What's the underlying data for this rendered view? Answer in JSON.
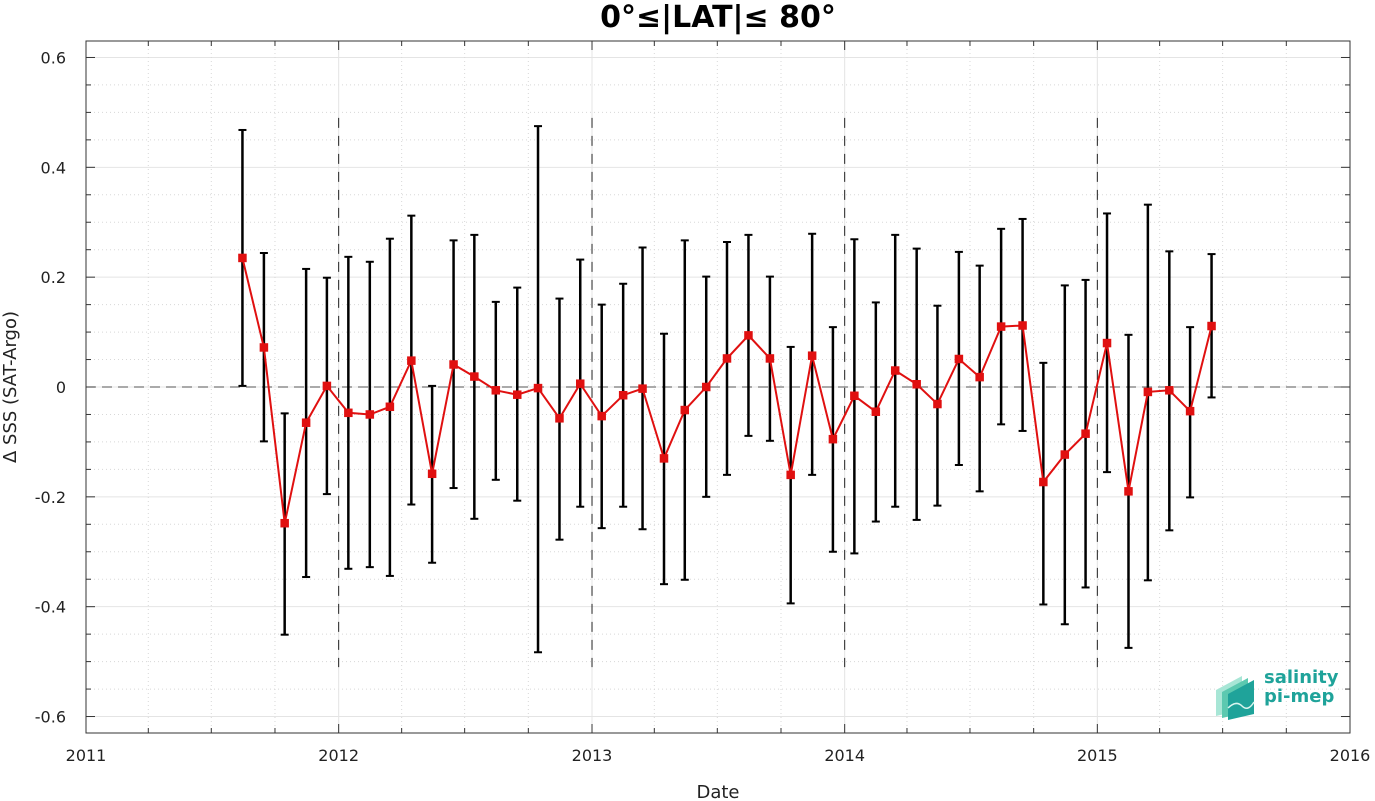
{
  "chart_data": {
    "type": "line",
    "title": "0°≤|LAT|≤ 80°",
    "xlabel": "Date",
    "ylabel": "Δ SSS (SAT-Argo)",
    "xlim": [
      "2011-01-01",
      "2016-01-01"
    ],
    "ylim": [
      -0.63,
      0.63
    ],
    "x_ticks": [
      "2011",
      "2012",
      "2013",
      "2014",
      "2015",
      "2016"
    ],
    "y_ticks": [
      "-0.6",
      "-0.4",
      "-0.2",
      "0",
      "0.2",
      "0.4",
      "0.6"
    ],
    "grid": true,
    "zero_reference_line": true,
    "year_divider_lines": [
      "2012-01-01",
      "2013-01-01",
      "2014-01-01",
      "2015-01-01"
    ],
    "series": [
      {
        "style": "line-with-square-markers",
        "color": "#e01010",
        "errorbar_color": "#000000",
        "x": [
          "2011-08-15",
          "2011-09-15",
          "2011-10-15",
          "2011-11-15",
          "2011-12-15",
          "2012-01-15",
          "2012-02-15",
          "2012-03-15",
          "2012-04-15",
          "2012-05-15",
          "2012-06-15",
          "2012-07-15",
          "2012-08-15",
          "2012-09-15",
          "2012-10-15",
          "2012-11-15",
          "2012-12-15",
          "2013-01-15",
          "2013-02-15",
          "2013-03-15",
          "2013-04-15",
          "2013-05-15",
          "2013-06-15",
          "2013-07-15",
          "2013-08-15",
          "2013-09-15",
          "2013-10-15",
          "2013-11-15",
          "2013-12-15",
          "2014-01-15",
          "2014-02-15",
          "2014-03-15",
          "2014-04-15",
          "2014-05-15",
          "2014-06-15",
          "2014-07-15",
          "2014-08-15",
          "2014-09-15",
          "2014-10-15",
          "2014-11-15",
          "2014-12-15",
          "2015-01-15",
          "2015-02-15",
          "2015-03-15",
          "2015-04-15",
          "2015-05-15",
          "2015-06-15"
        ],
        "y": [
          0.235,
          0.072,
          -0.248,
          -0.065,
          0.002,
          -0.047,
          -0.05,
          -0.036,
          0.048,
          -0.158,
          0.041,
          0.019,
          -0.006,
          -0.014,
          -0.002,
          -0.057,
          0.006,
          -0.053,
          -0.015,
          -0.003,
          -0.13,
          -0.042,
          0.0,
          0.052,
          0.094,
          0.052,
          -0.16,
          0.057,
          -0.095,
          -0.016,
          -0.045,
          0.03,
          0.005,
          -0.031,
          0.051,
          0.018,
          0.11,
          0.112,
          -0.173,
          -0.123,
          -0.085,
          0.08,
          -0.19,
          -0.009,
          -0.006,
          -0.044,
          0.111
        ],
        "y_upper": [
          0.468,
          0.244,
          -0.048,
          0.215,
          0.199,
          0.237,
          0.228,
          0.27,
          0.312,
          0.002,
          0.267,
          0.277,
          0.155,
          0.181,
          0.475,
          0.161,
          0.232,
          0.15,
          0.188,
          0.254,
          0.097,
          0.267,
          0.201,
          0.264,
          0.277,
          0.201,
          0.073,
          0.279,
          0.109,
          0.269,
          0.154,
          0.277,
          0.252,
          0.148,
          0.246,
          0.221,
          0.288,
          0.306,
          0.044,
          0.185,
          0.195,
          0.316,
          0.095,
          0.332,
          0.247,
          0.109,
          0.242
        ],
        "y_lower": [
          0.002,
          -0.099,
          -0.451,
          -0.346,
          -0.195,
          -0.331,
          -0.328,
          -0.344,
          -0.214,
          -0.32,
          -0.184,
          -0.24,
          -0.169,
          -0.207,
          -0.483,
          -0.278,
          -0.218,
          -0.257,
          -0.218,
          -0.259,
          -0.359,
          -0.351,
          -0.2,
          -0.16,
          -0.089,
          -0.098,
          -0.394,
          -0.16,
          -0.3,
          -0.303,
          -0.245,
          -0.218,
          -0.242,
          -0.216,
          -0.142,
          -0.19,
          -0.068,
          -0.08,
          -0.396,
          -0.432,
          -0.365,
          -0.155,
          -0.475,
          -0.352,
          -0.261,
          -0.201,
          -0.019
        ]
      }
    ]
  },
  "logo": {
    "text_line1": "salinity",
    "text_line2": "pi-mep",
    "color": "#1fa39a"
  }
}
